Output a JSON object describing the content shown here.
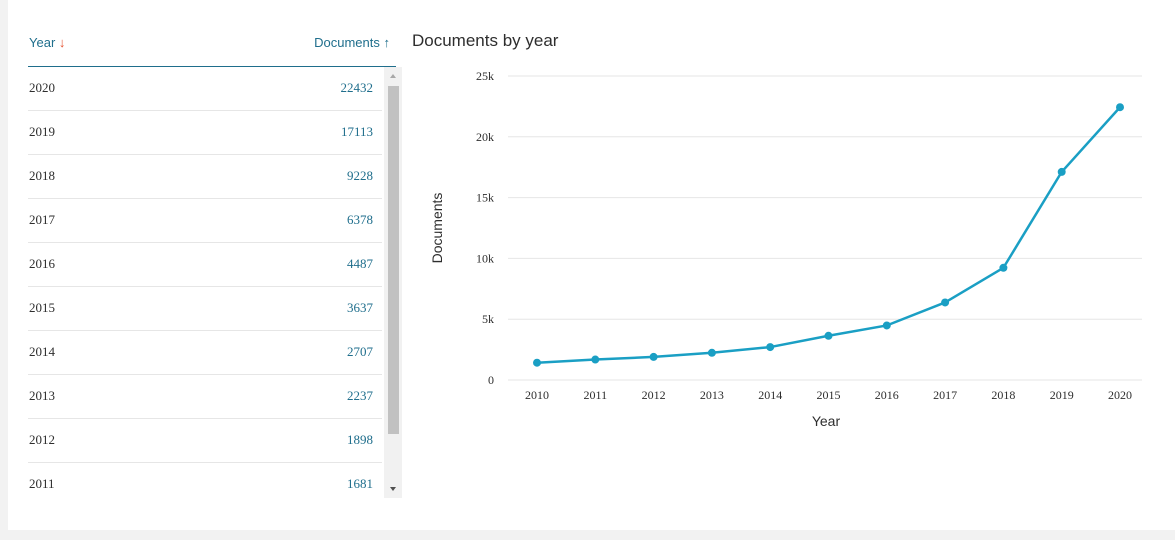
{
  "table": {
    "year_header": "Year",
    "documents_header": "Documents",
    "rows": [
      {
        "year": "2020",
        "documents": "22432"
      },
      {
        "year": "2019",
        "documents": "17113"
      },
      {
        "year": "2018",
        "documents": "9228"
      },
      {
        "year": "2017",
        "documents": "6378"
      },
      {
        "year": "2016",
        "documents": "4487"
      },
      {
        "year": "2015",
        "documents": "3637"
      },
      {
        "year": "2014",
        "documents": "2707"
      },
      {
        "year": "2013",
        "documents": "2237"
      },
      {
        "year": "2012",
        "documents": "1898"
      },
      {
        "year": "2011",
        "documents": "1681"
      }
    ]
  },
  "colors": {
    "line": "#1a9fc4",
    "accent": "#1f6e8c",
    "sort_desc": "#e4502e",
    "grid": "#e6e6e6"
  },
  "chart_data": {
    "type": "line",
    "title": "Documents by year",
    "xlabel": "Year",
    "ylabel": "Documents",
    "x": [
      "2010",
      "2011",
      "2012",
      "2013",
      "2014",
      "2015",
      "2016",
      "2017",
      "2018",
      "2019",
      "2020"
    ],
    "series": [
      {
        "values": [
          1420,
          1681,
          1898,
          2237,
          2707,
          3637,
          4487,
          6378,
          9228,
          17113,
          22432
        ]
      }
    ],
    "ylim": [
      0,
      25000
    ],
    "yticks": [
      0,
      5000,
      10000,
      15000,
      20000,
      25000
    ],
    "ytick_labels": [
      "0",
      "5k",
      "10k",
      "15k",
      "20k",
      "25k"
    ],
    "grid": true,
    "legend": false
  }
}
